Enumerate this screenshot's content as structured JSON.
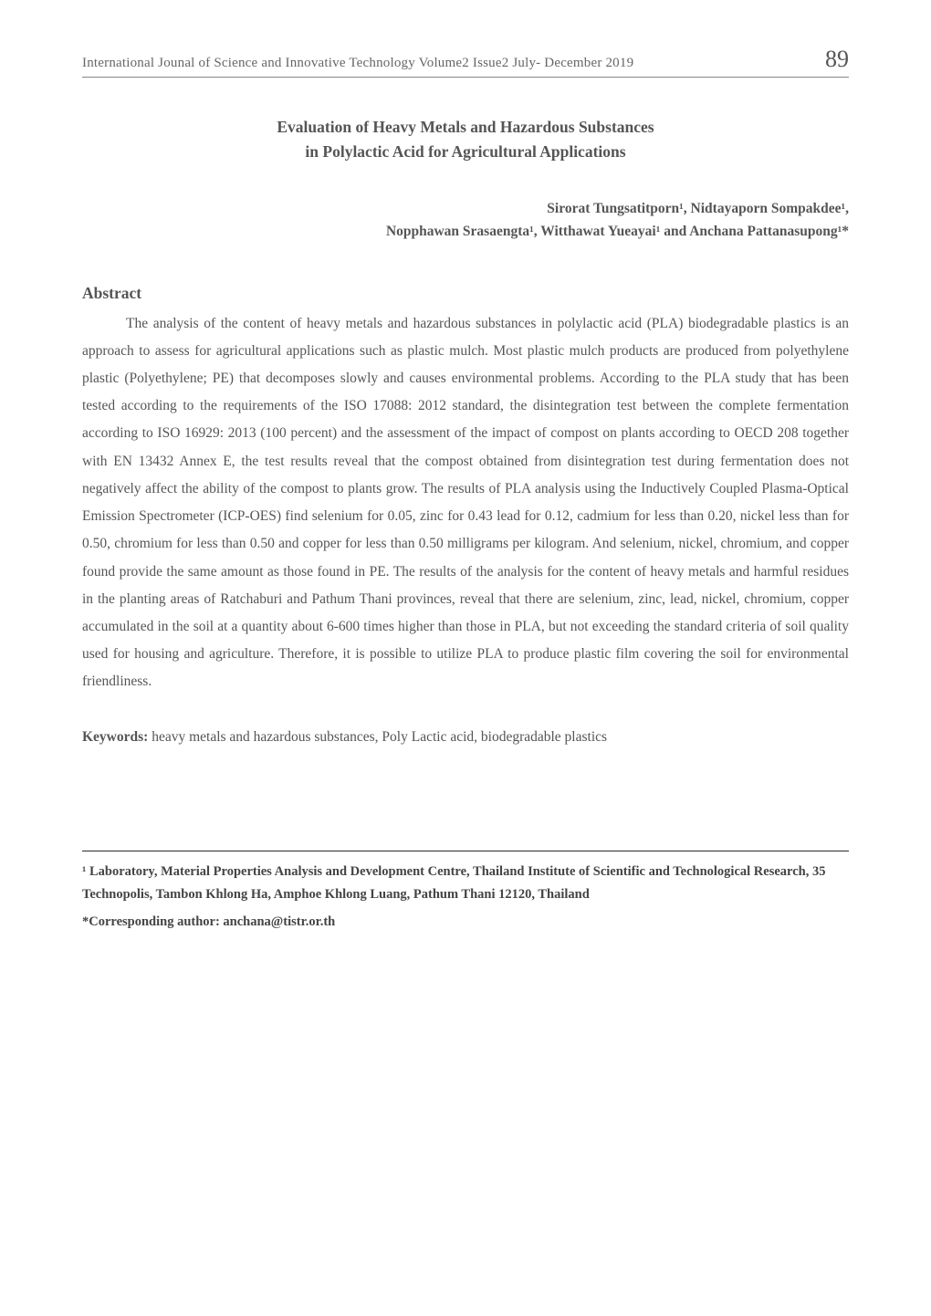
{
  "header": {
    "journal_title": "International Jounal of Science and Innovative Technology  Volume2 Issue2 July- December 2019",
    "page_number": "89"
  },
  "paper": {
    "title_line1": "Evaluation of Heavy Metals and Hazardous Substances",
    "title_line2": "in Polylactic Acid for Agricultural Applications",
    "authors_line1": "Sirorat Tungsatitporn¹, Nidtayaporn Sompakdee¹,",
    "authors_line2": "Nopphawan Srasaengta¹, Witthawat Yueayai¹ and Anchana Pattanasupong¹*"
  },
  "abstract": {
    "heading": "Abstract",
    "body": "The analysis of the content of heavy metals and hazardous substances in polylactic acid (PLA) biodegradable plastics is an approach to assess for agricultural applications such as plastic mulch. Most plastic mulch products are produced from polyethylene plastic (Polyethylene; PE) that decomposes slowly and causes environmental problems. According to the PLA study that has been tested according to the requirements of the ISO 17088: 2012 standard, the disintegration test between the complete fermentation according to ISO 16929: 2013 (100 percent) and the assessment of the impact of compost on plants according to OECD 208 together with EN 13432 Annex E, the test results reveal that the compost obtained from disintegration test during fermentation does not negatively affect the ability of the compost to plants grow. The results of PLA analysis using the Inductively Coupled Plasma-Optical Emission Spectrometer (ICP-OES) find selenium for 0.05, zinc for 0.43 lead for 0.12, cadmium for less than 0.20, nickel less than for 0.50, chromium for less than 0.50 and copper for less than 0.50 milligrams per kilogram. And selenium, nickel, chromium, and copper found provide the same amount as those found in PE. The results of the analysis for the content of heavy metals and harmful residues in the planting areas of Ratchaburi and Pathum Thani provinces, reveal that there are selenium, zinc, lead, nickel, chromium, copper accumulated in the soil at a quantity about 6-600 times higher than those in PLA, but not exceeding the standard criteria of soil quality used for housing and agriculture. Therefore, it is possible to utilize PLA to produce plastic film covering the soil for environmental friendliness."
  },
  "keywords": {
    "label": "Keywords:",
    "text": " heavy metals and hazardous substances, Poly Lactic acid, biodegradable plastics"
  },
  "footer": {
    "affiliation": "¹ Laboratory, Material Properties Analysis and Development Centre, Thailand Institute of Scientific and Technological Research, 35 Technopolis, Tambon Khlong Ha, Amphoe Khlong Luang, Pathum Thani 12120, Thailand",
    "corresponding": "*Corresponding author: anchana@tistr.or.th"
  }
}
